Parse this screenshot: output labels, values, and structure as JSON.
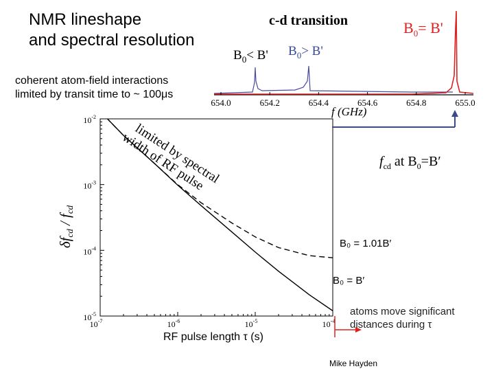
{
  "title_lines": [
    "NMR lineshape",
    "and spectral resolution"
  ],
  "coherent_lines": [
    "coherent atom-field interactions",
    "limited by transit time to ~ 100μs"
  ],
  "fcd_label": {
    "sym": "f",
    "sub": "cd",
    "rest": " at B",
    "sub0": "0",
    "tail": "=B′"
  },
  "b_ratio_label": "B₀ = 1.01B′",
  "b_equal_label": "B₀ = B′",
  "atoms_lines": [
    "atoms move significant",
    "distances during τ"
  ],
  "xlabel": "RF pulse length τ (s)",
  "credit": "Mike Hayden",
  "annotation_lines": [
    "limited by spectral",
    "width of RF pulse"
  ],
  "colors": {
    "blue_trace": "#4a4aa0",
    "red_trace": "#dd2222",
    "accent_red": "#e02020",
    "arrow_blue": "#3a4a8a"
  },
  "chart_data": [
    {
      "type": "line",
      "title": "c-d transition",
      "xlabel": "f (GHz)",
      "ylabel": "",
      "xlim": [
        654.0,
        655.0
      ],
      "xticks": [
        "654.0",
        "654.2",
        "654.4",
        "654.6",
        "654.8",
        "655.0"
      ],
      "legend": [
        "B₀= B'",
        "B₀< B'",
        "B₀> B'"
      ],
      "series": [
        {
          "name": "B₀= B'",
          "color": "#dd2222",
          "peak_at": 654.94
        },
        {
          "name": "B₀< B'",
          "color": "#4a4aa0",
          "peak_at": 654.06
        },
        {
          "name": "B₀> B'",
          "color": "#4a4aa0",
          "peak_at": 654.4
        }
      ]
    },
    {
      "type": "line",
      "title": "",
      "xlabel": "RF pulse length τ (s)",
      "ylabel": "δf_cd / f_cd",
      "xscale": "log",
      "yscale": "log",
      "xlim": [
        1e-07,
        0.0001
      ],
      "ylim": [
        1e-05,
        0.01
      ],
      "xticks": [
        {
          "base": "10",
          "exp": "-7"
        },
        {
          "base": "10",
          "exp": "-6"
        },
        {
          "base": "10",
          "exp": "-5"
        },
        {
          "base": "10",
          "exp": "-4"
        }
      ],
      "yticks": [
        {
          "base": "10",
          "exp": "-5"
        },
        {
          "base": "10",
          "exp": "-4"
        },
        {
          "base": "10",
          "exp": "-3"
        },
        {
          "base": "10",
          "exp": "-2"
        }
      ],
      "series": [
        {
          "name": "B₀ = B′",
          "style": "solid",
          "x": [
            1e-07,
            2e-07,
            5e-07,
            1e-06,
            2e-06,
            5e-06,
            1e-05,
            2e-05,
            5e-05,
            0.0001
          ],
          "y": [
            0.013,
            0.0056,
            0.0021,
            0.00098,
            0.00048,
            0.00019,
            9.4e-05,
            4.8e-05,
            2.1e-05,
            1.2e-05
          ]
        },
        {
          "name": "B₀ = 1.01B′",
          "style": "dashed",
          "x": [
            1e-07,
            2e-07,
            5e-07,
            1e-06,
            2e-06,
            5e-06,
            1e-05,
            2e-05,
            5e-05,
            0.0001
          ],
          "y": [
            0.013,
            0.0056,
            0.0021,
            0.001,
            0.00053,
            0.00026,
            0.00016,
            0.00011,
            8.3e-05,
            7.7e-05
          ]
        }
      ]
    }
  ]
}
